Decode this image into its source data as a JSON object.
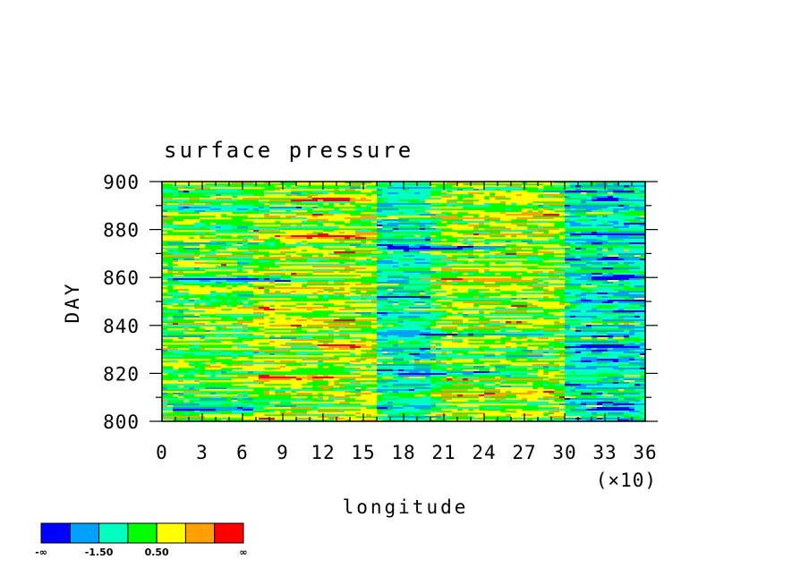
{
  "chart_data": {
    "type": "heatmap",
    "title": "surface pressure",
    "xlabel": "longitude",
    "ylabel": "DAY",
    "x_multiplier_label": "(×10)",
    "xlim": [
      0,
      36
    ],
    "ylim": [
      800,
      900
    ],
    "x_ticks": [
      0,
      3,
      6,
      9,
      12,
      15,
      18,
      21,
      24,
      27,
      30,
      33,
      36
    ],
    "x_tick_labels": [
      "0",
      "3",
      "6",
      "9",
      "12",
      "15",
      "18",
      "21",
      "24",
      "27",
      "30",
      "33",
      "36"
    ],
    "y_ticks": [
      800,
      820,
      840,
      860,
      880,
      900
    ],
    "y_tick_labels": [
      "800",
      "820",
      "840",
      "860",
      "880",
      "900"
    ],
    "colorbar": {
      "colors": [
        "#0000ff",
        "#00a0ff",
        "#00ffc0",
        "#00ff00",
        "#ffff00",
        "#ffa000",
        "#ff0000"
      ],
      "labels": [
        "-∞",
        "-1.50",
        "0.50",
        "∞"
      ]
    },
    "bands": [
      {
        "day": 805,
        "lon_from": 0,
        "lon_to": 8,
        "level": -2.2
      },
      {
        "day": 805,
        "lon_from": 31,
        "lon_to": 36,
        "level": -2.2
      },
      {
        "day": 809,
        "lon_from": 0,
        "lon_to": 12,
        "level": -1.3
      },
      {
        "day": 812,
        "lon_from": 18,
        "lon_to": 30,
        "level": 1.2
      },
      {
        "day": 814,
        "lon_from": 4,
        "lon_to": 14,
        "level": 0.8
      },
      {
        "day": 818,
        "lon_from": 5,
        "lon_to": 13,
        "level": 1.6
      },
      {
        "day": 820,
        "lon_from": 17,
        "lon_to": 28,
        "level": -2.0
      },
      {
        "day": 822,
        "lon_from": 0,
        "lon_to": 10,
        "level": 1.0
      },
      {
        "day": 826,
        "lon_from": 30,
        "lon_to": 36,
        "level": -1.8
      },
      {
        "day": 827,
        "lon_from": 18,
        "lon_to": 30,
        "level": -1.4
      },
      {
        "day": 831,
        "lon_from": 11,
        "lon_to": 16,
        "level": 2.2
      },
      {
        "day": 831,
        "lon_from": 30,
        "lon_to": 36,
        "level": -2.0
      },
      {
        "day": 836,
        "lon_from": 16,
        "lon_to": 30,
        "level": -1.3
      },
      {
        "day": 842,
        "lon_from": 0,
        "lon_to": 16,
        "level": 0.9
      },
      {
        "day": 846,
        "lon_from": 2,
        "lon_to": 10,
        "level": 1.3
      },
      {
        "day": 850,
        "lon_from": 30,
        "lon_to": 36,
        "level": -1.5
      },
      {
        "day": 856,
        "lon_from": 0,
        "lon_to": 14,
        "level": 0.7
      },
      {
        "day": 859,
        "lon_from": 0,
        "lon_to": 10,
        "level": -2.2
      },
      {
        "day": 859,
        "lon_from": 18,
        "lon_to": 28,
        "level": 1.8
      },
      {
        "day": 860,
        "lon_from": 31,
        "lon_to": 36,
        "level": -2.0
      },
      {
        "day": 866,
        "lon_from": 0,
        "lon_to": 6,
        "level": 1.6
      },
      {
        "day": 872,
        "lon_from": 16,
        "lon_to": 26,
        "level": -2.2
      },
      {
        "day": 877,
        "lon_from": 8,
        "lon_to": 16,
        "level": 2.1
      },
      {
        "day": 878,
        "lon_from": 30,
        "lon_to": 36,
        "level": -2.2
      },
      {
        "day": 882,
        "lon_from": 20,
        "lon_to": 30,
        "level": 1.0
      },
      {
        "day": 886,
        "lon_from": 24,
        "lon_to": 30,
        "level": 1.4
      },
      {
        "day": 889,
        "lon_from": 0,
        "lon_to": 12,
        "level": -1.2
      },
      {
        "day": 893,
        "lon_from": 10,
        "lon_to": 15,
        "level": 1.5
      },
      {
        "day": 893,
        "lon_from": 31,
        "lon_to": 35,
        "level": -2.2
      }
    ],
    "low_zones": [
      {
        "lon_from": 16,
        "lon_to": 20,
        "level": -0.9
      },
      {
        "lon_from": 30,
        "lon_to": 36,
        "level": -1.0
      }
    ],
    "warm_zones": [
      {
        "lon_from": 7,
        "lon_to": 16,
        "level": 0.5
      },
      {
        "lon_from": 21,
        "lon_to": 30,
        "level": 0.4
      }
    ]
  }
}
